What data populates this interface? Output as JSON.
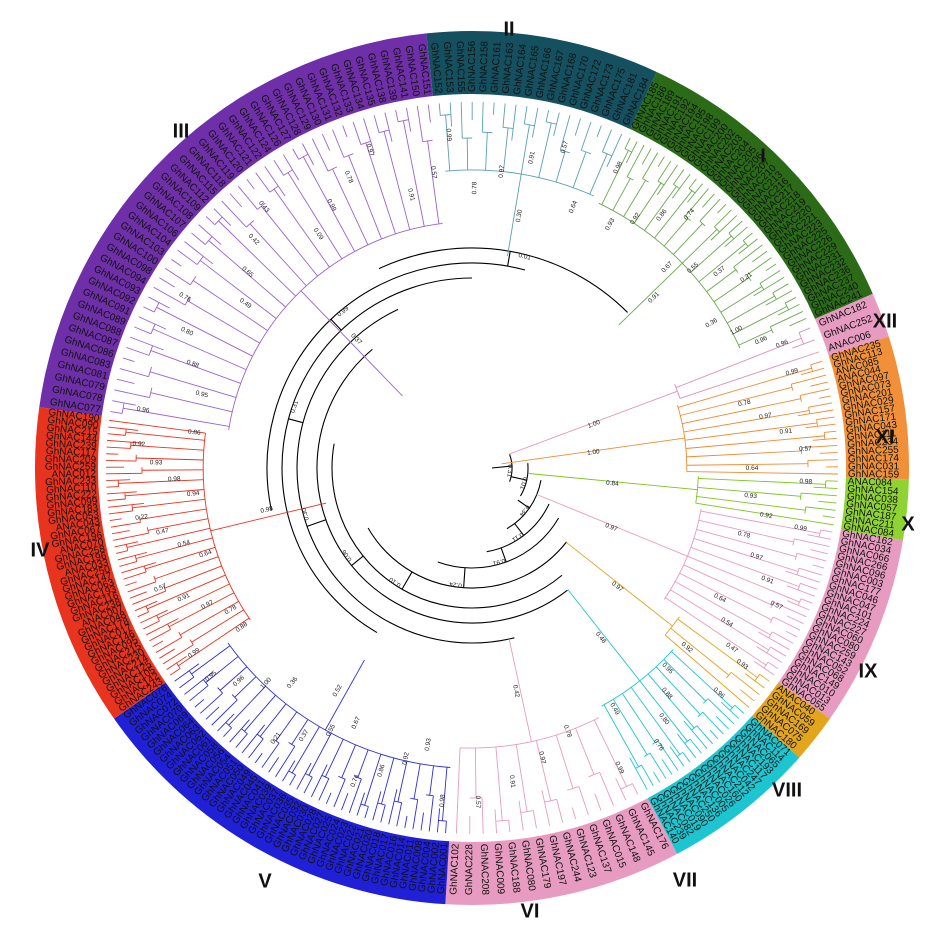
{
  "tree": {
    "line_color": "#000000",
    "clades": [
      {
        "id": "XII",
        "label": "XII",
        "color": "#e79bc0",
        "branch_color": "#e08fb8",
        "genes": [
          "GhNAC182",
          "GhNAC252",
          "ANAC006"
        ]
      },
      {
        "id": "XI",
        "label": "XI",
        "color": "#f0913a",
        "branch_color": "#ef8a33",
        "genes": [
          "GhNAC235",
          "GhNAC113",
          "ANAC085",
          "ANAC044",
          "GhNAC097",
          "GhNAC073",
          "GhNAC201",
          "GhNAC029",
          "GhNAC157",
          "GhNAC171",
          "GhNAC043",
          "GhNAC111",
          "GhNAC234",
          "GhNAC255",
          "GhNAC174",
          "GhNAC031",
          "GhNAC159"
        ]
      },
      {
        "id": "X",
        "label": "X",
        "color": "#8ed332",
        "branch_color": "#7cc41f",
        "genes": [
          "ANAC084",
          "GhNAC154",
          "GhNAC038",
          "GhNAC057",
          "GhNAC187",
          "GhNAC211",
          "GhNAC084"
        ]
      },
      {
        "id": "IX",
        "label": "IX",
        "color": "#e79bc0",
        "branch_color": "#e79bc0",
        "genes": [
          "GhNAC162",
          "GhNAC034",
          "GhNAC066",
          "GhNAC266",
          "GhNAC096",
          "GhNAC003",
          "GhNAC177",
          "GhNAC046",
          "GhNAC047",
          "GhNAC101",
          "GhNAC224",
          "GhNAC227",
          "GhNAC060",
          "GhNAC080",
          "GhNAC259",
          "GhNAC143",
          "GhNAC052",
          "GhNAC068",
          "GhNAC149",
          "GhNAC010",
          "GhNAC013",
          "GhNAC055"
        ]
      },
      {
        "id": "VIII",
        "label": "VIII",
        "color": "#e3a51c",
        "branch_color": "#e0a31d",
        "genes": [
          "ANAC040",
          "GhNAC059",
          "GhNAC169",
          "GhNAC075",
          "GhNAC180"
        ]
      },
      {
        "id": "VII",
        "label": "VII",
        "color": "#1cc5cf",
        "branch_color": "#20c5cf",
        "genes": [
          "GhNAC071",
          "GhNAC114",
          "GhNAC065",
          "GhNAC193",
          "GhNAC117",
          "GhNAC247",
          "GhNAC042",
          "GhNAC212",
          "GhNAC160",
          "GhNAC026",
          "GhNAC005",
          "GhNAC136",
          "GhNAC250",
          "GhNAC090",
          "GhNAC019",
          "GhNAC082",
          "GhNAC239",
          "GhNAC140"
        ]
      },
      {
        "id": "VI",
        "label": "VI",
        "color": "#e79bc0",
        "branch_color": "#e79bc0",
        "genes": [
          "GhNAC176",
          "GhNAC145",
          "GhNAC148",
          "GhNAC015",
          "GhNAC137",
          "GhNAC123",
          "GhNAC244",
          "GhNAC197",
          "GhNAC179",
          "GhNAC080",
          "GhNAC188",
          "GhNAC009",
          "GhNAC208",
          "GhNAC228",
          "GhNAC102"
        ]
      },
      {
        "id": "V",
        "label": "V",
        "color": "#2020d6",
        "branch_color": "#2d2dd8",
        "genes": [
          "GhNAC001",
          "GhNAC002",
          "GhNAC004",
          "GhNAC008",
          "GhNAC011",
          "GhNAC014",
          "GhNAC016",
          "GhNAC017",
          "GhNAC018",
          "GhNAC020",
          "GhNAC021",
          "GhNAC022",
          "GhNAC023",
          "GhNAC024",
          "GhNAC025",
          "GhNAC027",
          "GhNAC028",
          "GhNAC030",
          "GhNAC032",
          "GhNAC035",
          "GhNAC036",
          "GhNAC037",
          "GhNAC039",
          "GhNAC041",
          "GhNAC045",
          "GhNAC049",
          "GhNAC050",
          "GhNAC051",
          "GhNAC054",
          "GhNAC056",
          "GhNAC058",
          "GhNAC061",
          "GhNAC062",
          "GhNAC063",
          "GhNAC064",
          "GhNAC069",
          "GhNAC070",
          "GhNAC072",
          "GhNAC074",
          "GhNAC076"
        ]
      },
      {
        "id": "IV",
        "label": "IV",
        "color": "#e8331e",
        "branch_color": "#e8331e",
        "genes": [
          "GhNAC243",
          "GhNAC142",
          "GhNAC105",
          "GhNAC125",
          "GhNAC214",
          "GhNAC230",
          "GhNAC215",
          "GhNAC095",
          "GhNAC146",
          "GhNAC017",
          "GhNAC178",
          "GhNAC048",
          "ANAC007",
          "GhNAC238",
          "GhNAC116",
          "GhNAC193",
          "GhNAC063",
          "GhNAC147",
          "GhNAC250",
          "ANAC033",
          "GhNAC196",
          "GhNAC258",
          "ANAC070",
          "GhNAC196",
          "GhNAC067",
          "ANAC043",
          "GhNAC053",
          "GhNAC183",
          "GhNAC099",
          "GhNAC222",
          "GhNAC110",
          "GhNAC233",
          "ANAC012",
          "GhNAC259",
          "GhNAC209",
          "GhNAC117",
          "GhNAC239",
          "GhNAC144",
          "GhNAC215",
          "GhNAC090",
          "GhNAC190"
        ]
      },
      {
        "id": "III",
        "label": "III",
        "color": "#6f2fa8",
        "branch_color": "#9a63d0",
        "genes": [
          "GhNAC077",
          "GhNAC078",
          "GhNAC079",
          "GhNAC081",
          "GhNAC083",
          "GhNAC086",
          "GhNAC087",
          "GhNAC088",
          "GhNAC089",
          "GhNAC091",
          "GhNAC092",
          "GhNAC093",
          "GhNAC094",
          "GhNAC098",
          "GhNAC100",
          "GhNAC103",
          "GhNAC104",
          "GhNAC106",
          "GhNAC107",
          "GhNAC108",
          "GhNAC109",
          "GhNAC112",
          "GhNAC115",
          "GhNAC118",
          "GhNAC119",
          "GhNAC120",
          "GhNAC121",
          "GhNAC122",
          "GhNAC124",
          "GhNAC126",
          "GhNAC127",
          "GhNAC128",
          "GhNAC129",
          "GhNAC130",
          "GhNAC131",
          "GhNAC132",
          "GhNAC133",
          "GhNAC134",
          "GhNAC135",
          "GhNAC138",
          "GhNAC139",
          "GhNAC141",
          "GhNAC150",
          "GhNAC151"
        ]
      },
      {
        "id": "II",
        "label": "II",
        "color": "#14505f",
        "branch_color": "#5aa0b4",
        "genes": [
          "GhNAC152",
          "GhNAC153",
          "GhNAC155",
          "GhNAC156",
          "GhNAC158",
          "GhNAC161",
          "GhNAC163",
          "GhNAC164",
          "GhNAC165",
          "GhNAC166",
          "GhNAC167",
          "GhNAC168",
          "GhNAC170",
          "GhNAC172",
          "GhNAC173",
          "GhNAC175",
          "GhNAC181",
          "GhNAC184"
        ]
      },
      {
        "id": "I",
        "label": "I",
        "color": "#2b6b18",
        "branch_color": "#6aa84f",
        "genes": [
          "GhNAC185",
          "GhNAC186",
          "GhNAC189",
          "GhNAC191",
          "GhNAC192",
          "GhNAC194",
          "GhNAC195",
          "GhNAC198",
          "GhNAC199",
          "GhNAC200",
          "GhNAC202",
          "GhNAC203",
          "GhNAC204",
          "GhNAC205",
          "GhNAC206",
          "GhNAC207",
          "GhNAC210",
          "GhNAC213",
          "GhNAC216",
          "GhNAC217",
          "GhNAC218",
          "GhNAC219",
          "GhNAC220",
          "GhNAC221",
          "GhNAC223",
          "GhNAC225",
          "GhNAC226",
          "GhNAC229",
          "GhNAC231",
          "GhNAC232",
          "GhNAC236",
          "GhNAC237",
          "GhNAC240",
          "GhNAC241"
        ]
      }
    ],
    "internal_support": [
      "0.31",
      "0.01",
      "0.34",
      "0.11",
      "0.91",
      "0.24",
      "0.10",
      "0.06",
      "0.30",
      "0.31",
      "0.99",
      "0.01",
      "1.00",
      "0.57",
      "0.84",
      "1.00",
      "0.74"
    ],
    "stem_support": {
      "XII": "1.00",
      "XI": "1.00",
      "X": "0.84",
      "IX": "0.97",
      "VIII": "0.97",
      "VII": "0.48",
      "VI": "0.42",
      "V": "0.52",
      "IV": "0.98",
      "III": "0.37",
      "II": "0.30",
      "I": "0.91"
    },
    "tip_support": [
      "1.00",
      "0.98",
      "0.99",
      "0.96",
      "0.93",
      "0.78",
      "0.95",
      "0.92",
      "0.97",
      "0.88",
      "0.86",
      "0.91",
      "0.80",
      "0.74",
      "0.57",
      "0.76",
      "0.67",
      "0.64",
      "0.49",
      "0.55",
      "0.54",
      "0.65",
      "0.37",
      "0.47",
      "0.42",
      "0.21",
      "0.22",
      "0.43",
      "0.36",
      "0.94",
      "0.09"
    ]
  }
}
